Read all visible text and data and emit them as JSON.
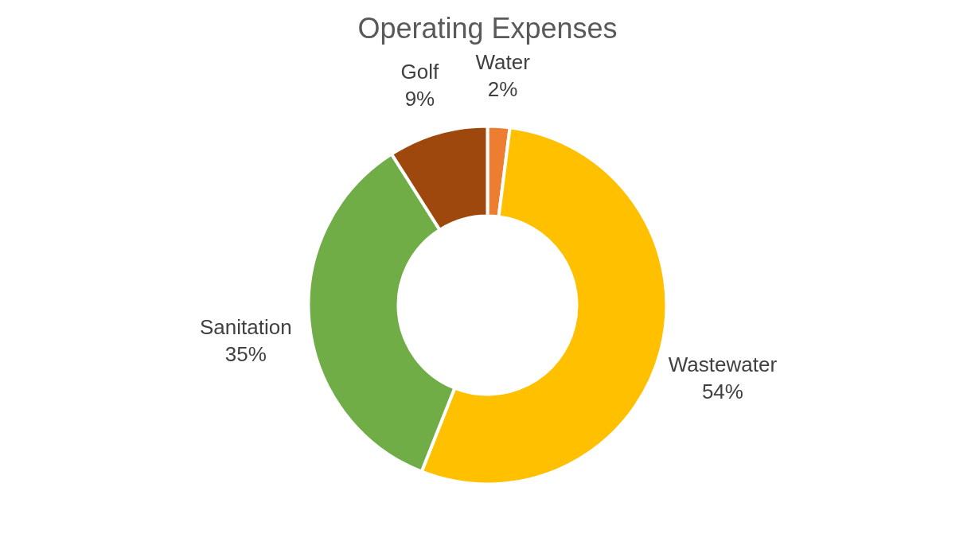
{
  "chart_data": {
    "type": "donut",
    "title": "Operating Expenses",
    "categories": [
      "Water",
      "Wastewater",
      "Sanitation",
      "Golf"
    ],
    "values": [
      2,
      54,
      35,
      9
    ],
    "value_labels": [
      "2%",
      "54%",
      "35%",
      "9%"
    ],
    "colors": [
      "#ed7d31",
      "#ffc000",
      "#70ad47",
      "#9e480e"
    ]
  }
}
